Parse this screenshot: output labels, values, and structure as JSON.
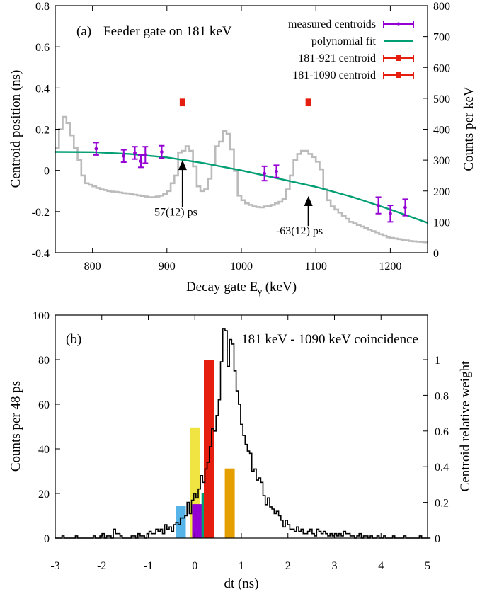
{
  "chart_data": [
    {
      "panel_label": "(a)",
      "type": "scatter",
      "annotation_title": "Feeder gate on 181 keV",
      "xlabel_main": "Decay gate E",
      "xlabel_sub": "γ",
      "xlabel_unit": " (keV)",
      "ylabel": "Centroid position (ns)",
      "y2label": "Counts per keV",
      "xlim": [
        750,
        1250
      ],
      "ylim": [
        -0.4,
        0.8
      ],
      "y2lim": [
        0,
        800
      ],
      "x_ticks": [
        800,
        900,
        1000,
        1100,
        1200
      ],
      "y_ticks": [
        -0.4,
        -0.2,
        0,
        0.2,
        0.4,
        0.6,
        0.8
      ],
      "y2_ticks": [
        0,
        100,
        200,
        300,
        400,
        500,
        600,
        700,
        800
      ],
      "grid": false,
      "legend_position": "top-right",
      "colors": {
        "measured": "#9400d3",
        "fit": "#009e73",
        "special": "#e51e10",
        "spectrum": "#bbbbbb"
      },
      "series": [
        {
          "name": "measured centroids",
          "kind": "points",
          "points": [
            {
              "x": 805,
              "y": 0.105,
              "err": 0.03
            },
            {
              "x": 842,
              "y": 0.07,
              "err": 0.03
            },
            {
              "x": 857,
              "y": 0.085,
              "err": 0.03
            },
            {
              "x": 865,
              "y": 0.045,
              "err": 0.03
            },
            {
              "x": 871,
              "y": 0.075,
              "err": 0.04
            },
            {
              "x": 893,
              "y": 0.09,
              "err": 0.03
            },
            {
              "x": 1031,
              "y": -0.015,
              "err": 0.035
            },
            {
              "x": 1047,
              "y": -0.005,
              "err": 0.03
            },
            {
              "x": 1184,
              "y": -0.17,
              "err": 0.04
            },
            {
              "x": 1200,
              "y": -0.21,
              "err": 0.04
            },
            {
              "x": 1220,
              "y": -0.18,
              "err": 0.04
            }
          ]
        },
        {
          "name": "polynomial fit",
          "kind": "curve",
          "x": [
            750,
            800,
            850,
            900,
            950,
            1000,
            1050,
            1100,
            1150,
            1200,
            1250
          ],
          "y": [
            0.09,
            0.089,
            0.08,
            0.063,
            0.035,
            0.0,
            -0.04,
            -0.08,
            -0.13,
            -0.19,
            -0.255
          ]
        },
        {
          "name": "181-921 centroid",
          "kind": "points",
          "points": [
            {
              "x": 921,
              "y": 0.33,
              "err": 0.015
            }
          ]
        },
        {
          "name": "181-1090 centroid",
          "kind": "points",
          "points": [
            {
              "x": 1090,
              "y": 0.33,
              "err": 0.015
            }
          ]
        }
      ],
      "spectrum": {
        "name": "Counts per keV",
        "x": [
          750,
          755,
          760,
          765,
          770,
          775,
          780,
          785,
          790,
          795,
          800,
          805,
          810,
          815,
          820,
          825,
          830,
          835,
          840,
          845,
          850,
          855,
          860,
          865,
          870,
          875,
          880,
          885,
          890,
          895,
          900,
          905,
          910,
          915,
          920,
          925,
          930,
          935,
          940,
          945,
          950,
          955,
          960,
          965,
          970,
          975,
          980,
          985,
          990,
          995,
          1000,
          1005,
          1010,
          1015,
          1020,
          1025,
          1030,
          1035,
          1040,
          1045,
          1050,
          1055,
          1060,
          1065,
          1070,
          1075,
          1080,
          1085,
          1090,
          1095,
          1100,
          1105,
          1110,
          1115,
          1120,
          1125,
          1130,
          1135,
          1140,
          1145,
          1150,
          1155,
          1160,
          1165,
          1170,
          1175,
          1180,
          1185,
          1190,
          1195,
          1200,
          1205,
          1210,
          1215,
          1220,
          1225,
          1230,
          1235,
          1240,
          1245
        ],
        "counts": [
          340,
          400,
          440,
          420,
          380,
          340,
          300,
          250,
          225,
          220,
          215,
          210,
          205,
          203,
          200,
          198,
          197,
          195,
          193,
          192,
          190,
          188,
          186,
          184,
          182,
          180,
          180,
          182,
          185,
          190,
          200,
          225,
          250,
          325,
          330,
          345,
          330,
          280,
          215,
          200,
          205,
          240,
          285,
          345,
          360,
          395,
          385,
          335,
          265,
          185,
          170,
          160,
          155,
          150,
          148,
          147,
          150,
          152,
          155,
          160,
          165,
          175,
          205,
          250,
          300,
          320,
          330,
          330,
          320,
          310,
          295,
          270,
          205,
          170,
          150,
          140,
          130,
          120,
          110,
          100,
          95,
          90,
          85,
          80,
          75,
          70,
          66,
          60,
          55,
          50,
          48,
          46,
          44,
          42,
          40,
          38,
          37,
          36,
          35,
          34
        ]
      },
      "annotations": [
        {
          "text": "57(12) ps",
          "x_label": 912,
          "y_label": -0.22,
          "x_arrow": 921,
          "y_tip": 0.05,
          "y_tail": -0.18
        },
        {
          "text": "-63(12) ps",
          "x_label": 1078,
          "y_label": -0.31,
          "x_arrow": 1090,
          "y_tip": -0.125,
          "y_tail": -0.27
        }
      ]
    },
    {
      "panel_label": "(b)",
      "type": "bar",
      "annotation_title": "181 keV - 1090 keV coincidence",
      "xlabel": "dt (ns)",
      "ylabel": "Counts per 48 ps",
      "y2label": "Centroid relative weight",
      "xlim": [
        -3,
        5
      ],
      "ylim": [
        0,
        100
      ],
      "y2lim": [
        0,
        1.25
      ],
      "x_ticks": [
        -3,
        -2,
        -1,
        0,
        1,
        2,
        3,
        4,
        5
      ],
      "y_ticks": [
        0,
        20,
        40,
        60,
        80,
        100
      ],
      "y2_ticks": [
        0,
        0.2,
        0.4,
        0.6,
        0.8,
        1
      ],
      "grid": false,
      "histogram": {
        "name": "Counts per 48 ps",
        "bin_width": 0.048,
        "bin_start": -3.0,
        "counts": [
          0,
          0,
          0,
          1,
          0,
          0,
          0,
          0,
          0,
          1,
          0,
          0,
          0,
          0,
          0,
          0,
          0,
          1,
          0,
          0,
          1,
          2,
          0,
          1,
          1,
          0,
          4,
          2,
          2,
          1,
          0,
          0,
          0,
          0,
          1,
          1,
          0,
          2,
          1,
          1,
          0,
          2,
          3,
          2,
          2,
          4,
          3,
          4,
          2,
          6,
          4,
          5,
          3,
          6,
          7,
          6,
          9,
          9,
          10,
          16,
          11,
          17,
          20,
          18,
          22,
          28,
          25,
          31,
          34,
          41,
          49,
          48,
          55,
          62,
          79,
          94,
          93,
          77,
          89,
          87,
          75,
          66,
          60,
          51,
          46,
          42,
          39,
          38,
          30,
          31,
          26,
          27,
          25,
          19,
          15,
          18,
          14,
          13,
          11,
          12,
          10,
          8,
          5,
          8,
          6,
          4,
          4,
          3,
          5,
          3,
          4,
          2,
          2,
          3,
          4,
          2,
          1,
          4,
          3,
          2,
          3,
          2,
          1,
          2,
          1,
          2,
          1,
          2,
          1,
          3,
          2,
          2,
          1,
          1,
          0,
          1,
          2,
          0,
          1,
          1,
          0,
          1,
          0,
          0,
          1,
          0,
          0,
          1,
          0,
          0,
          0,
          1,
          0,
          0,
          0,
          0,
          1,
          0,
          0,
          0,
          0,
          0,
          0,
          1,
          0,
          0,
          0,
          0
        ]
      },
      "weights": [
        {
          "x": -0.3,
          "weight": 0.18,
          "color": "#56b4e9"
        },
        {
          "x": 0.0,
          "weight": 0.62,
          "color": "#f0e442"
        },
        {
          "x": 0.05,
          "weight": 0.19,
          "color": "#9400d3"
        },
        {
          "x": 0.25,
          "weight": 0.25,
          "color": "#009e73"
        },
        {
          "x": 0.3,
          "weight": 1.0,
          "color": "#e51e10"
        },
        {
          "x": 0.75,
          "weight": 0.39,
          "color": "#e69f00"
        }
      ]
    }
  ]
}
